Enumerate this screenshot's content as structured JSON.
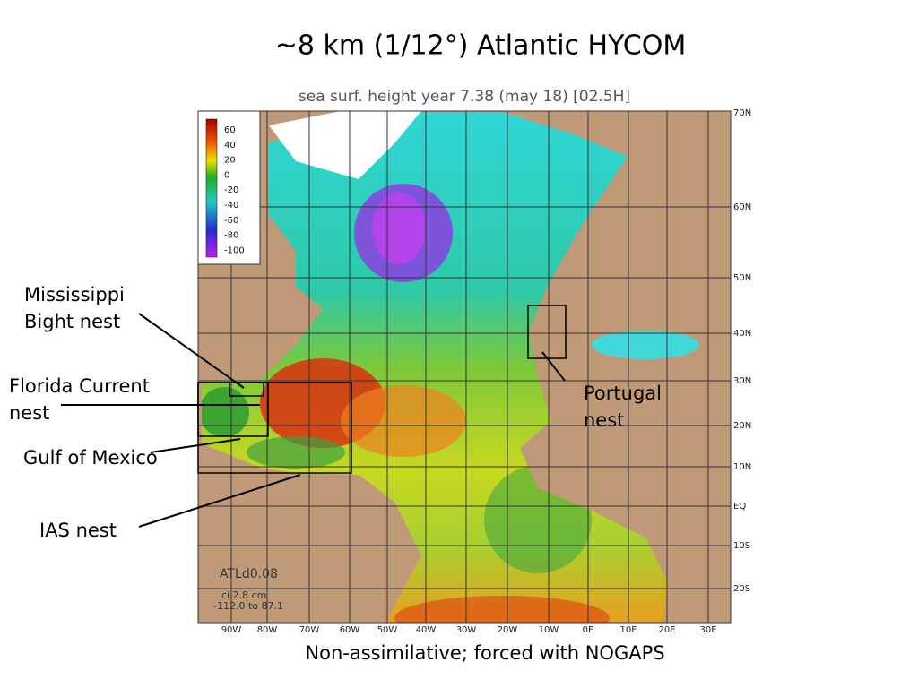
{
  "title": "~8 km (1/12°) Atlantic HYCOM",
  "map": {
    "header": "sea surf. height   year   7.38 (may 18) [02.5H]",
    "lat_labels": [
      "70N",
      "60N",
      "50N",
      "40N",
      "30N",
      "20N",
      "10N",
      "EQ",
      "10S",
      "20S"
    ],
    "lon_labels": [
      "90W",
      "80W",
      "70W",
      "60W",
      "50W",
      "40W",
      "30W",
      "20W",
      "10W",
      "0E",
      "10E",
      "20E",
      "30E"
    ],
    "colorbar_ticks": [
      60,
      40,
      20,
      0,
      -20,
      -40,
      -60,
      -80,
      -100
    ],
    "info": [
      "ATLd0.08",
      "ci  2.8 cm",
      "-112.0 to  87.1"
    ]
  },
  "annotations": [
    {
      "lines": [
        "Mississippi",
        "Bight nest"
      ]
    },
    {
      "lines": [
        "Florida Current",
        "nest"
      ]
    },
    {
      "lines": [
        "Gulf of Mexico"
      ]
    },
    {
      "lines": [
        "IAS nest"
      ]
    },
    {
      "lines": [
        "Portugal",
        "nest"
      ]
    }
  ],
  "footer": "Non-assimilative; forced with NOGAPS"
}
